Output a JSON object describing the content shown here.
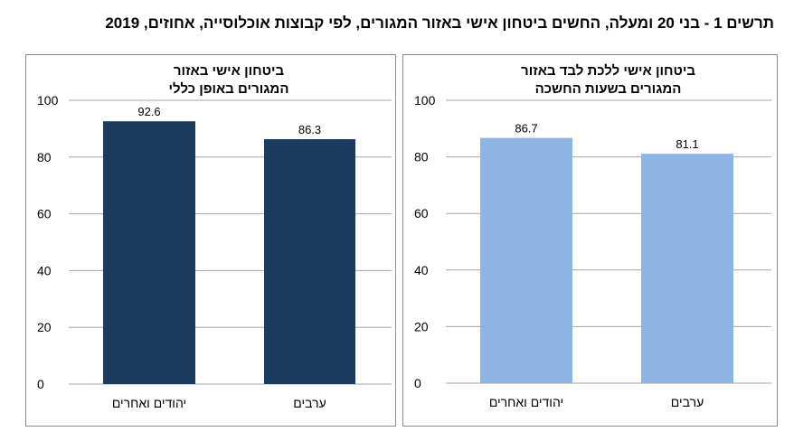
{
  "title": "תרשים 1 - בני 20 ומעלה, החשים ביטחון אישי באזור המגורים, לפי קבוצות אוכלוסייה, אחוזים, 2019",
  "chart_data": [
    {
      "type": "bar",
      "title_lines": [
        "ביטחון אישי באזור",
        "המגורים באופן כללי"
      ],
      "categories": [
        "יהודים ואחרים",
        "ערבים"
      ],
      "values": [
        92.6,
        86.3
      ],
      "value_labels": [
        "92.6",
        "86.3"
      ],
      "ylim": [
        0,
        100
      ],
      "yticks": [
        0,
        20,
        40,
        60,
        80,
        100
      ],
      "grid": true,
      "color": "#1b3a5e"
    },
    {
      "type": "bar",
      "title_lines": [
        "ביטחון אישי ללכת לבד באזור",
        "המגורים בשעות החשכה"
      ],
      "categories": [
        "יהודים ואחרים",
        "ערבים"
      ],
      "values": [
        86.7,
        81.1
      ],
      "value_labels": [
        "86.7",
        "81.1"
      ],
      "ylim": [
        0,
        100
      ],
      "yticks": [
        0,
        20,
        40,
        60,
        80,
        100
      ],
      "grid": true,
      "color": "#8eb4e3"
    }
  ]
}
